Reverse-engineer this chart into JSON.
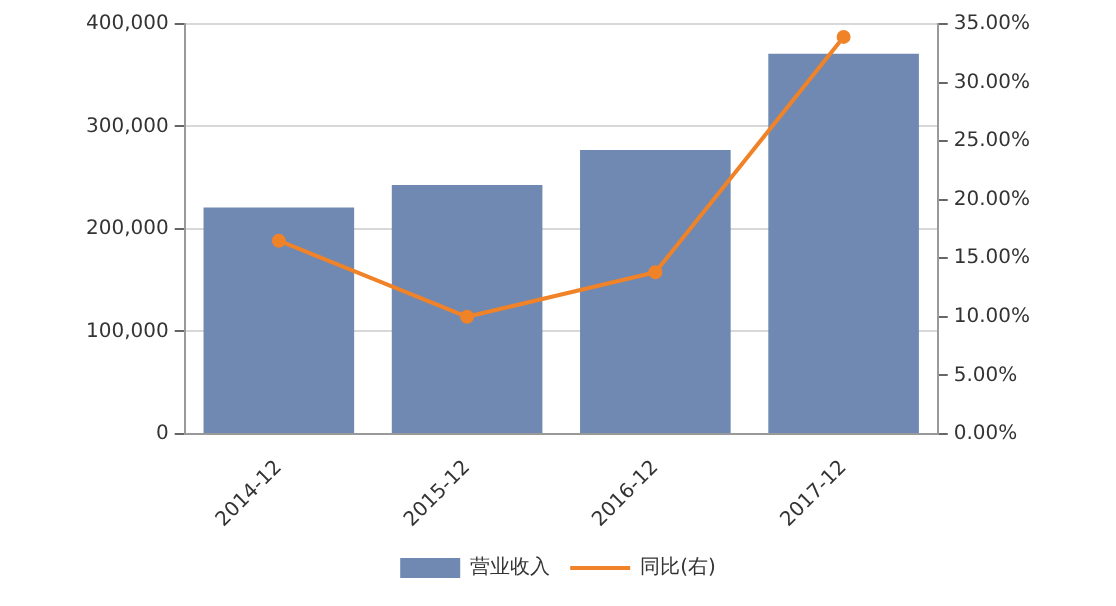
{
  "chart_data": {
    "type": "bar",
    "categories": [
      "2014-12",
      "2015-12",
      "2016-12",
      "2017-12"
    ],
    "series": [
      {
        "name": "营业收入",
        "color": "#7089b3",
        "values": [
          221000,
          243000,
          277000,
          371000
        ]
      },
      {
        "name": "同比(右)",
        "type": "line",
        "axis": "y2",
        "color": "#f08228",
        "values": [
          16.5,
          10.0,
          13.8,
          33.9
        ]
      }
    ],
    "ylim": [
      0,
      400000
    ],
    "yticks": [
      {
        "value": 0,
        "label": "0"
      },
      {
        "value": 100000,
        "label": "100,000"
      },
      {
        "value": 200000,
        "label": "200,000"
      },
      {
        "value": 300000,
        "label": "300,000"
      },
      {
        "value": 400000,
        "label": "400,000"
      }
    ],
    "y2lim": [
      0,
      35
    ],
    "y2ticks": [
      {
        "value": 0,
        "label": "0.00%"
      },
      {
        "value": 5,
        "label": "5.00%"
      },
      {
        "value": 10,
        "label": "10.00%"
      },
      {
        "value": 15,
        "label": "15.00%"
      },
      {
        "value": 20,
        "label": "20.00%"
      },
      {
        "value": 25,
        "label": "25.00%"
      },
      {
        "value": 30,
        "label": "30.00%"
      },
      {
        "value": 35,
        "label": "35.00%"
      }
    ],
    "grid": "y",
    "legend": "bottom",
    "marker": "circle",
    "line_style": "solid"
  }
}
